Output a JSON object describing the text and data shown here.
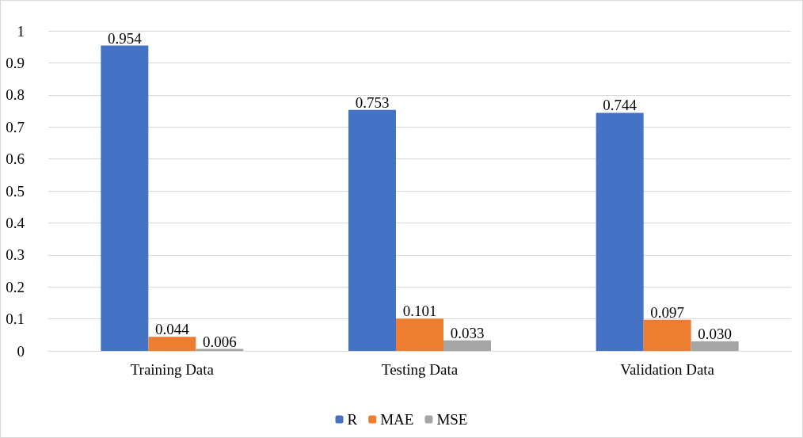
{
  "chart_data": {
    "type": "bar",
    "categories": [
      "Training Data",
      "Testing Data",
      "Validation Data"
    ],
    "series": [
      {
        "name": "R",
        "color": "#4472c4",
        "values": [
          0.954,
          0.753,
          0.744
        ],
        "value_labels": [
          "0.954",
          "0.753",
          "0.744"
        ]
      },
      {
        "name": "MAE",
        "color": "#ed7d31",
        "values": [
          0.044,
          0.101,
          0.097
        ],
        "value_labels": [
          "0.044",
          "0.101",
          "0.097"
        ]
      },
      {
        "name": "MSE",
        "color": "#a5a5a5",
        "values": [
          0.006,
          0.033,
          0.03
        ],
        "value_labels": [
          "0.006",
          "0.033",
          "0.030"
        ]
      }
    ],
    "ylim": [
      0,
      1
    ],
    "yticks": [
      0,
      0.1,
      0.2,
      0.3,
      0.4,
      0.5,
      0.6,
      0.7,
      0.8,
      0.9,
      1
    ],
    "grid": "y",
    "legend": "bottom"
  }
}
